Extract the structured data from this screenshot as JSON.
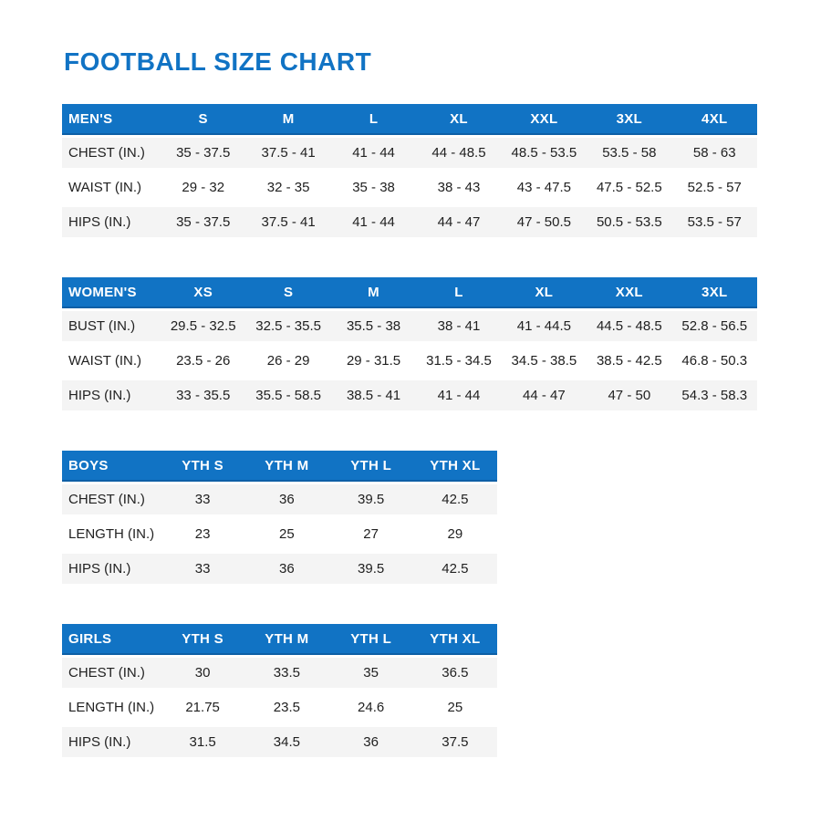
{
  "title": "FOOTBALL SIZE CHART",
  "accent_color": "#1173c4",
  "row_stripe_color": "#f4f4f4",
  "tables": [
    {
      "name": "mens",
      "header": [
        "MEN'S",
        "S",
        "M",
        "L",
        "XL",
        "XXL",
        "3XL",
        "4XL"
      ],
      "rows": [
        [
          "CHEST (IN.)",
          "35 - 37.5",
          "37.5 - 41",
          "41 - 44",
          "44 - 48.5",
          "48.5 - 53.5",
          "53.5 - 58",
          "58 - 63"
        ],
        [
          "WAIST (IN.)",
          "29 - 32",
          "32 - 35",
          "35 - 38",
          "38 - 43",
          "43 - 47.5",
          "47.5 - 52.5",
          "52.5 - 57"
        ],
        [
          "HIPS (IN.)",
          "35 - 37.5",
          "37.5 - 41",
          "41 - 44",
          "44 - 47",
          "47 - 50.5",
          "50.5 - 53.5",
          "53.5 - 57"
        ]
      ]
    },
    {
      "name": "womens",
      "header": [
        "WOMEN'S",
        "XS",
        "S",
        "M",
        "L",
        "XL",
        "XXL",
        "3XL"
      ],
      "rows": [
        [
          "BUST (IN.)",
          "29.5 - 32.5",
          "32.5 - 35.5",
          "35.5 - 38",
          "38 - 41",
          "41 - 44.5",
          "44.5 - 48.5",
          "52.8 - 56.5"
        ],
        [
          "WAIST (IN.)",
          "23.5 - 26",
          "26 - 29",
          "29 - 31.5",
          "31.5 - 34.5",
          "34.5 - 38.5",
          "38.5 - 42.5",
          "46.8 - 50.3"
        ],
        [
          "HIPS (IN.)",
          "33 - 35.5",
          "35.5 - 58.5",
          "38.5 - 41",
          "41 - 44",
          "44 - 47",
          "47 - 50",
          "54.3 - 58.3"
        ]
      ]
    },
    {
      "name": "boys",
      "header": [
        "BOYS",
        "YTH S",
        "YTH M",
        "YTH L",
        "YTH XL"
      ],
      "rows": [
        [
          "CHEST (IN.)",
          "33",
          "36",
          "39.5",
          "42.5"
        ],
        [
          "LENGTH (IN.)",
          "23",
          "25",
          "27",
          "29"
        ],
        [
          "HIPS (IN.)",
          "33",
          "36",
          "39.5",
          "42.5"
        ]
      ]
    },
    {
      "name": "girls",
      "header": [
        "GIRLS",
        "YTH S",
        "YTH M",
        "YTH L",
        "YTH XL"
      ],
      "rows": [
        [
          "CHEST (IN.)",
          "30",
          "33.5",
          "35",
          "36.5"
        ],
        [
          "LENGTH (IN.)",
          "21.75",
          "23.5",
          "24.6",
          "25"
        ],
        [
          "HIPS (IN.)",
          "31.5",
          "34.5",
          "36",
          "37.5"
        ]
      ]
    }
  ]
}
